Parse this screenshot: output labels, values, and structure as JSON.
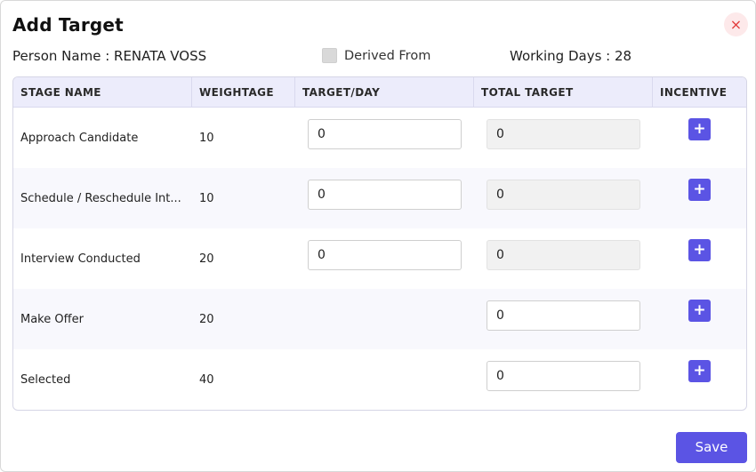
{
  "modal": {
    "title": "Add Target",
    "close_icon": "×"
  },
  "info": {
    "person_name": "Person Name : RENATA VOSS",
    "derived_label": "Derived From",
    "derived_checked": false,
    "working_days": "Working Days : 28"
  },
  "table": {
    "headers": [
      "STAGE NAME",
      "WEIGHTAGE",
      "TARGET/DAY",
      "TOTAL TARGET",
      "INCENTIVE"
    ],
    "rows": [
      {
        "stage": "Approach Candidate",
        "weightage": "10",
        "target_day": "0",
        "total_target": "0"
      },
      {
        "stage": "Schedule / Reschedule Int...",
        "weightage": "10",
        "target_day": "0",
        "total_target": "0"
      },
      {
        "stage": "Interview Conducted",
        "weightage": "20",
        "target_day": "0",
        "total_target": "0"
      },
      {
        "stage": "Make Offer",
        "weightage": "20",
        "target_day": "",
        "total_target": "0"
      },
      {
        "stage": "Selected",
        "weightage": "40",
        "target_day": "",
        "total_target": "0"
      }
    ],
    "incentive_label": "+"
  },
  "footer": {
    "save_label": "Save"
  },
  "colors": {
    "accent": "#5b54e4",
    "header_bg": "#ececfb",
    "close_bg": "#fde9ea",
    "close_fg": "#e23b3b"
  }
}
